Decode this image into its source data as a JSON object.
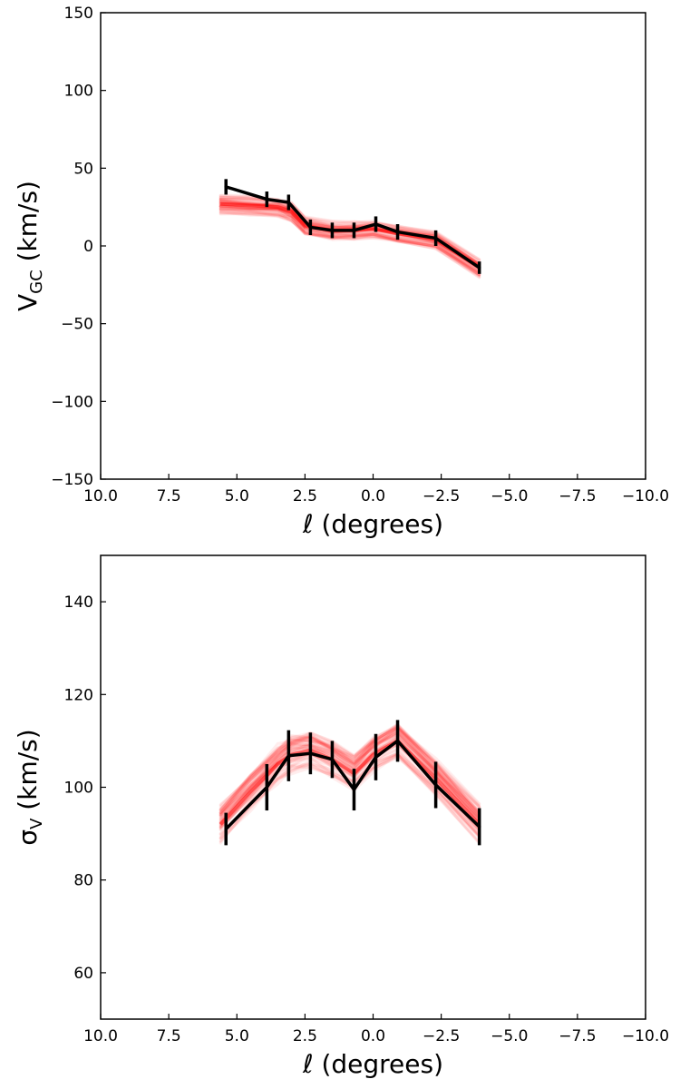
{
  "chart_data": [
    {
      "type": "line",
      "title": "",
      "xlabel": {
        "main": "ℓ",
        "rest": " (degrees)"
      },
      "ylabel": {
        "main": "V",
        "sub": "GC",
        "rest": " (km/s)"
      },
      "xlim": [
        10.0,
        -10.0
      ],
      "ylim": [
        -150,
        150
      ],
      "x_ticks": [
        10.0,
        7.5,
        5.0,
        2.5,
        0.0,
        -2.5,
        -5.0,
        -7.5,
        -10.0
      ],
      "x_tick_labels": [
        "10.0",
        "7.5",
        "5.0",
        "2.5",
        "0.0",
        "−2.5",
        "−5.0",
        "−7.5",
        "−10.0"
      ],
      "y_ticks": [
        -150,
        -100,
        -50,
        0,
        50,
        100,
        150
      ],
      "y_tick_labels": [
        "−150",
        "−100",
        "−50",
        "0",
        "50",
        "100",
        "150"
      ],
      "series": [
        {
          "x": [
            5.4,
            3.9,
            3.1,
            2.3,
            1.5,
            0.7,
            -0.1,
            -0.9,
            -2.3,
            -3.9
          ],
          "y": [
            38,
            30,
            28,
            12,
            10,
            10,
            14,
            9,
            5,
            -14
          ],
          "yerr": [
            5,
            5,
            5,
            5,
            5,
            5,
            5,
            5,
            5,
            4
          ],
          "color": "#000000"
        }
      ],
      "model_band": {
        "color": "#ff0000",
        "x": [
          5.6,
          4.5,
          3.5,
          3.0,
          2.5,
          1.5,
          0.7,
          0.0,
          -0.9,
          -2.3,
          -3.9
        ],
        "y": [
          27,
          26,
          25,
          22,
          13,
          10,
          10,
          11,
          8,
          4,
          -14
        ],
        "halfwidth": 5
      }
    },
    {
      "type": "line",
      "title": "",
      "xlabel": {
        "main": "ℓ",
        "rest": " (degrees)"
      },
      "ylabel": {
        "main": "σ",
        "sub": "V",
        "rest": " (km/s)"
      },
      "xlim": [
        10.0,
        -10.0
      ],
      "ylim": [
        50,
        150
      ],
      "x_ticks": [
        10.0,
        7.5,
        5.0,
        2.5,
        0.0,
        -2.5,
        -5.0,
        -7.5,
        -10.0
      ],
      "x_tick_labels": [
        "10.0",
        "7.5",
        "5.0",
        "2.5",
        "0.0",
        "−2.5",
        "−5.0",
        "−7.5",
        "−10.0"
      ],
      "y_ticks": [
        60,
        80,
        100,
        120,
        140
      ],
      "y_tick_labels": [
        "60",
        "80",
        "100",
        "120",
        "140"
      ],
      "series": [
        {
          "x": [
            5.4,
            3.9,
            3.1,
            2.3,
            1.5,
            0.7,
            -0.1,
            -0.9,
            -2.3,
            -3.9
          ],
          "y": [
            91,
            100,
            106.8,
            107.3,
            106,
            99.5,
            106.5,
            110,
            100.5,
            91.5
          ],
          "yerr": [
            3.5,
            5,
            5.5,
            4.5,
            4,
            4.5,
            5,
            4.5,
            5,
            4
          ],
          "color": "#000000"
        }
      ],
      "model_band": {
        "color": "#ff0000",
        "x": [
          5.6,
          4.5,
          3.5,
          3.0,
          2.3,
          1.5,
          0.7,
          0.0,
          -0.9,
          -2.3,
          -3.9
        ],
        "y": [
          92,
          99,
          105,
          107,
          108,
          106,
          103,
          107,
          110,
          102,
          92
        ],
        "halfwidth": 3.5
      }
    }
  ]
}
